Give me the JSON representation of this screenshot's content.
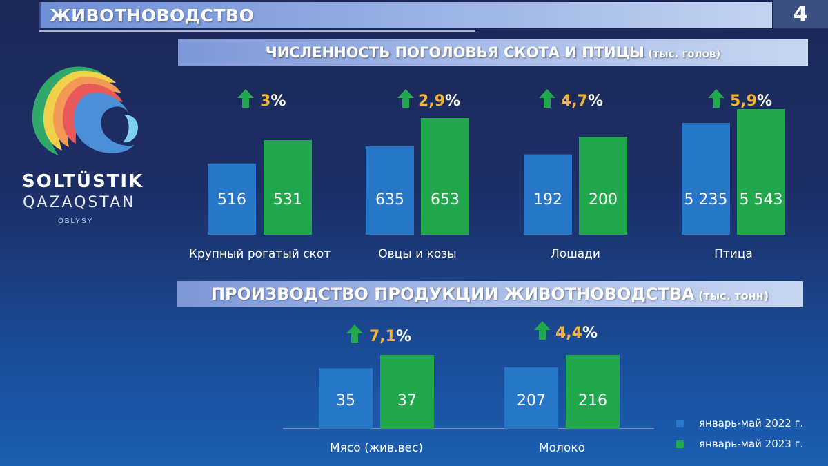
{
  "page": {
    "title": "ЖИВОТНОВОДСТВО",
    "page_number": "4"
  },
  "logo": {
    "line1": "SOLTÜSTIK",
    "line2": "QAZAQSTAN",
    "line3": "OBLYSY"
  },
  "colors": {
    "series_2022": "#2677c8",
    "series_2023": "#22a84c",
    "arrow": "#22a84c",
    "percent": "#f3b431"
  },
  "legend": [
    {
      "label": "январь-май 2022 г.",
      "color": "#2677c8"
    },
    {
      "label": "январь-май 2023 г.",
      "color": "#22a84c"
    }
  ],
  "chart_data": [
    {
      "type": "bar",
      "title": "ЧИСЛЕННОСТЬ ПОГОЛОВЬЯ СКОТА И ПТИЦЫ",
      "unit": "(тыс. голов)",
      "categories": [
        "Крупный рогатый скот",
        "Овцы и козы",
        "Лошади",
        "Птица"
      ],
      "series": [
        {
          "name": "январь-май 2022 г.",
          "values": [
            516,
            635,
            192,
            5235
          ],
          "labels": [
            "516",
            "635",
            "192",
            "5 235"
          ]
        },
        {
          "name": "январь-май 2023 г.",
          "values": [
            531,
            653,
            200,
            5543
          ],
          "labels": [
            "531",
            "653",
            "200",
            "5 543"
          ]
        }
      ],
      "growth": [
        {
          "value": "3",
          "sign": "%"
        },
        {
          "value": "2,9",
          "sign": "%"
        },
        {
          "value": "4,7",
          "sign": "%"
        },
        {
          "value": "5,9",
          "sign": "%"
        }
      ]
    },
    {
      "type": "bar",
      "title": "ПРОИЗВОДСТВО ПРОДУКЦИИ ЖИВОТНОВОДСТВА",
      "unit": "(тыс. тонн)",
      "categories": [
        "Мясо (жив.вес)",
        "Молоко"
      ],
      "series": [
        {
          "name": "январь-май 2022 г.",
          "values": [
            35,
            207
          ],
          "labels": [
            "35",
            "207"
          ]
        },
        {
          "name": "январь-май 2023 г.",
          "values": [
            37,
            216
          ],
          "labels": [
            "37",
            "216"
          ]
        }
      ],
      "growth": [
        {
          "value": "7,1",
          "sign": "%"
        },
        {
          "value": "4,4",
          "sign": "%"
        }
      ]
    }
  ]
}
